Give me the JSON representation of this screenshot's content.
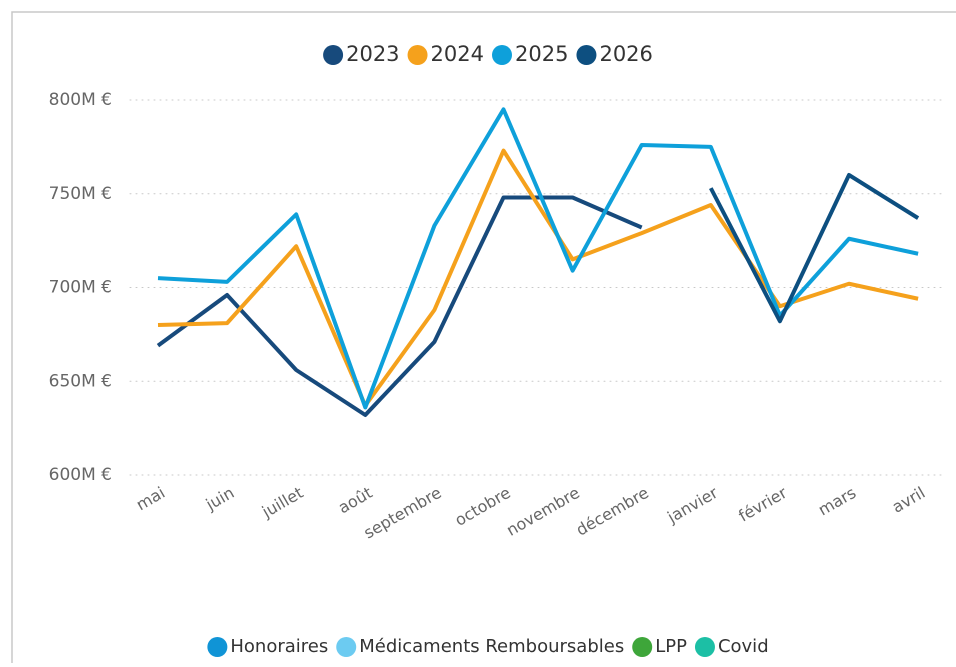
{
  "chart_data": {
    "type": "line",
    "categories": [
      "mai",
      "juin",
      "juillet",
      "août",
      "septembre",
      "octobre",
      "novembre",
      "décembre",
      "janvier",
      "février",
      "mars",
      "avril"
    ],
    "series": [
      {
        "name": "2023",
        "color": "#174a7c",
        "values": [
          669,
          696,
          656,
          632,
          671,
          748,
          748,
          732,
          null,
          null,
          null,
          null
        ]
      },
      {
        "name": "2024",
        "color": "#f5a11c",
        "values": [
          680,
          681,
          722,
          637,
          688,
          773,
          715,
          729,
          744,
          690,
          702,
          694
        ]
      },
      {
        "name": "2025",
        "color": "#0ea0da",
        "values": [
          705,
          703,
          739,
          636,
          733,
          795,
          709,
          776,
          775,
          685,
          726,
          718
        ]
      },
      {
        "name": "2026",
        "color": "#0d4f80",
        "values": [
          null,
          null,
          null,
          null,
          null,
          null,
          null,
          null,
          753,
          682,
          760,
          737
        ]
      }
    ],
    "ylim": [
      600,
      800
    ],
    "yticks": [
      {
        "value": 600,
        "label": "600M €"
      },
      {
        "value": 650,
        "label": "650M €"
      },
      {
        "value": 700,
        "label": "700M €"
      },
      {
        "value": 750,
        "label": "750M €"
      },
      {
        "value": 800,
        "label": "800M €"
      }
    ],
    "grid": true,
    "legend": "top",
    "secondary_legend": [
      {
        "name": "Honoraires",
        "color": "#1094d6"
      },
      {
        "name": "Médicaments Remboursables",
        "color": "#6ccbf1"
      },
      {
        "name": "LPP",
        "color": "#3ea63a"
      },
      {
        "name": "Covid",
        "color": "#1cbfa5"
      }
    ]
  }
}
